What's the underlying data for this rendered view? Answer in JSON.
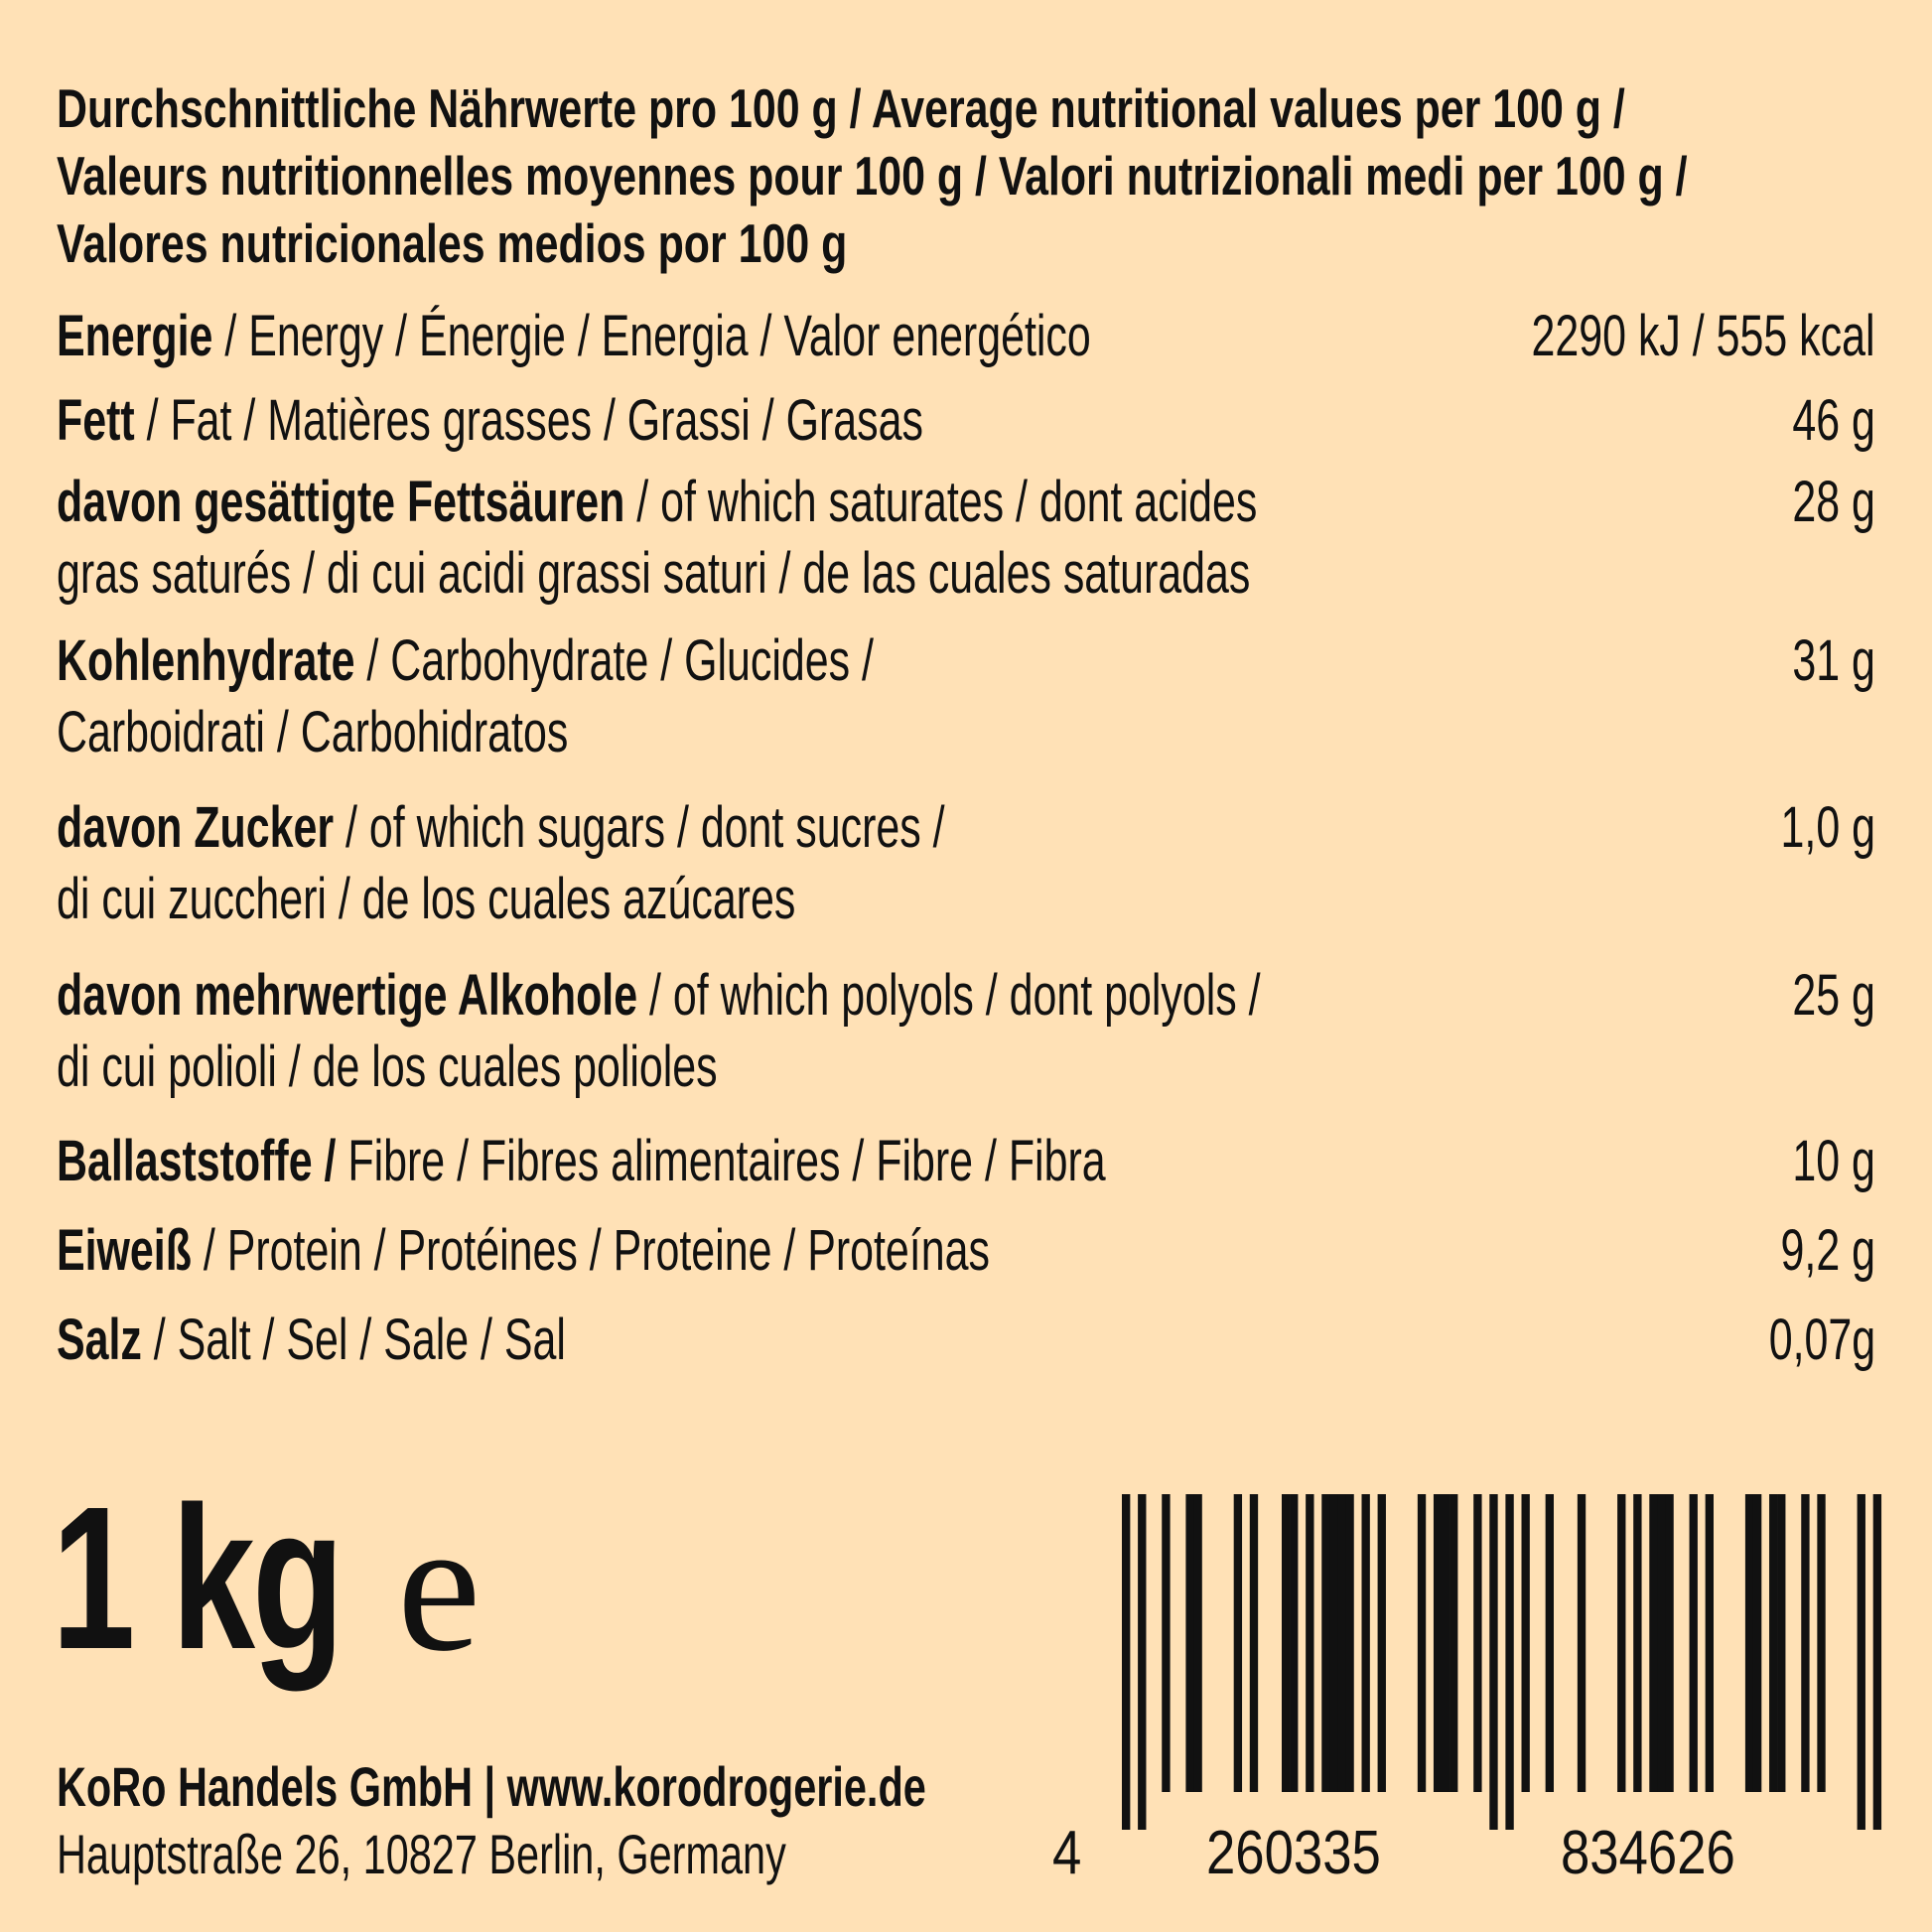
{
  "title_lines": [
    "Durchschnittliche Nährwerte pro 100 g / Average nutritional values per 100 g /",
    "Valeurs nutritionnelles moyennes pour 100 g / Valori nutrizionali medi per 100 g /",
    "Valores nutricionales medios por 100 g"
  ],
  "rows": [
    {
      "bold": "Energie",
      "rest": " / Energy / Énergie / Energia / Valor energético",
      "rest2": "",
      "value": "2290 kJ / 555 kcal"
    },
    {
      "bold": "Fett",
      "rest": " / Fat / Matières grasses / Grassi / Grasas",
      "rest2": "",
      "value": "46 g"
    },
    {
      "bold": "davon gesättigte Fettsäuren",
      "rest": " / of which saturates / dont acides",
      "rest2": "gras saturés / di cui acidi grassi saturi / de las cuales saturadas",
      "value": "28 g"
    },
    {
      "bold": "Kohlenhydrate",
      "rest": " / Carbohydrate / Glucides /",
      "rest2": "Carboidrati / Carbohidratos",
      "value": "31 g"
    },
    {
      "bold": "davon Zucker",
      "rest": " / of which sugars / dont sucres /",
      "rest2": "di cui zuccheri / de los cuales azúcares",
      "value": "1,0 g"
    },
    {
      "bold": "davon mehrwertige Alkohole",
      "rest": " / of which polyols / dont polyols /",
      "rest2": "di cui polioli / de los cuales polioles",
      "value": "25 g"
    },
    {
      "bold": "Ballaststoffe /",
      "rest": " Fibre / Fibres alimentaires / Fibre  / Fibra",
      "rest2": "",
      "value": "10 g"
    },
    {
      "bold": "Eiweiß",
      "rest": " / Protein / Protéines / Proteine / Proteínas",
      "rest2": "",
      "value": "9,2 g"
    },
    {
      "bold": "Salz",
      "rest": " / Salt / Sel / Sale / Sal",
      "rest2": "",
      "value": "0,07g"
    }
  ],
  "weight": "1 kg",
  "estimated_sign": "e",
  "footer": {
    "company": "KoRo Handels GmbH | www.korodrogerie.de",
    "address": "Hauptstraße 26, 10827 Berlin, Germany"
  },
  "barcode": {
    "digits": "4260335834626",
    "first": "4",
    "left_group": "260335",
    "right_group": "834626"
  },
  "colors": {
    "background": "#FFE1B6",
    "text": "#111111"
  }
}
